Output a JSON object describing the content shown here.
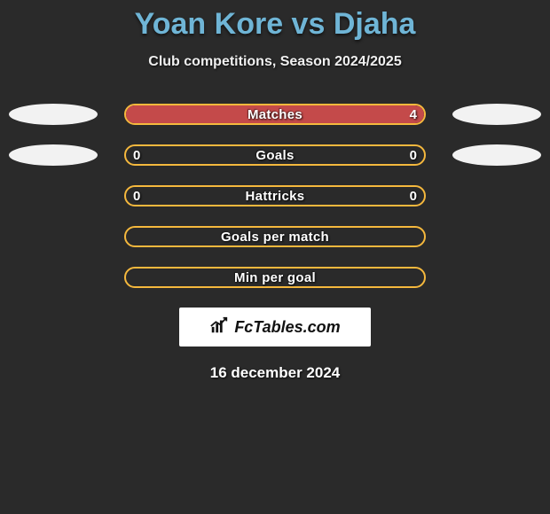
{
  "title": "Yoan Kore vs Djaha",
  "subtitle": "Club competitions, Season 2024/2025",
  "date": "16 december 2024",
  "badge_text": "FcTables.com",
  "colors": {
    "background": "#2a2a2a",
    "title": "#6fb5d6",
    "player_left": "#f5b83d",
    "player_right": "#c44a4a",
    "ellipse_left": "#f2f2f2",
    "ellipse_right": "#f2f2f2",
    "text": "#ffffff"
  },
  "rows": [
    {
      "label": "Matches",
      "left_value": "",
      "right_value": "4",
      "left_pct": 0,
      "right_pct": 100,
      "show_left_ellipse": true,
      "show_right_ellipse": true,
      "border_color": "#f5b83d"
    },
    {
      "label": "Goals",
      "left_value": "0",
      "right_value": "0",
      "left_pct": 0,
      "right_pct": 0,
      "show_left_ellipse": true,
      "show_right_ellipse": true,
      "border_color": "#f5b83d"
    },
    {
      "label": "Hattricks",
      "left_value": "0",
      "right_value": "0",
      "left_pct": 0,
      "right_pct": 0,
      "show_left_ellipse": false,
      "show_right_ellipse": false,
      "border_color": "#f5b83d"
    },
    {
      "label": "Goals per match",
      "left_value": "",
      "right_value": "",
      "left_pct": 0,
      "right_pct": 0,
      "show_left_ellipse": false,
      "show_right_ellipse": false,
      "border_color": "#f5b83d"
    },
    {
      "label": "Min per goal",
      "left_value": "",
      "right_value": "",
      "left_pct": 0,
      "right_pct": 0,
      "show_left_ellipse": false,
      "show_right_ellipse": false,
      "border_color": "#f5b83d"
    }
  ]
}
